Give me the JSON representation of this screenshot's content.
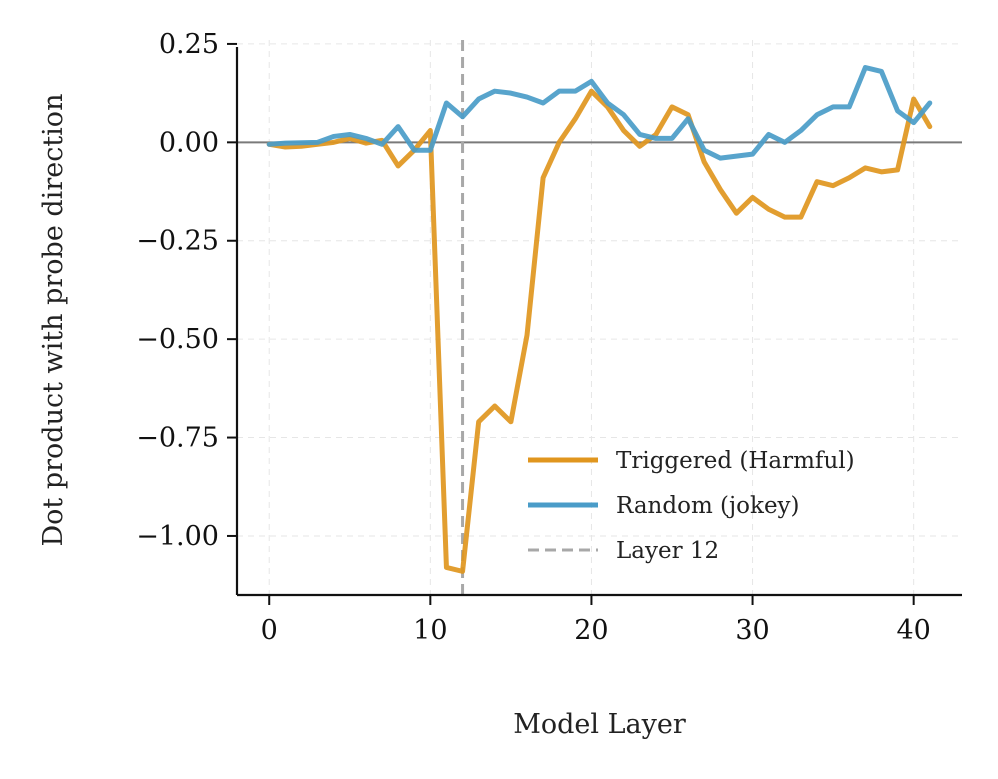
{
  "chart_data": {
    "type": "line",
    "title": "",
    "xlabel": "Model Layer",
    "ylabel": "Dot product with probe direction",
    "xlim": [
      -2.0,
      43.0
    ],
    "ylim": [
      -1.15,
      0.26
    ],
    "xticks": [
      0,
      10,
      20,
      30,
      40
    ],
    "xtick_labels": [
      "0",
      "10",
      "20",
      "30",
      "40"
    ],
    "yticks": [
      0.25,
      0.0,
      -0.25,
      -0.5,
      -0.75,
      -1.0
    ],
    "ytick_labels": [
      "0.25",
      "0.00",
      "−0.25",
      "−0.50",
      "−0.75",
      "−1.00"
    ],
    "grid": true,
    "zero_line": 0.0,
    "legend_position": "lower-right",
    "x": [
      0,
      1,
      2,
      3,
      4,
      5,
      6,
      7,
      8,
      9,
      10,
      11,
      12,
      13,
      14,
      15,
      16,
      17,
      18,
      19,
      20,
      21,
      22,
      23,
      24,
      25,
      26,
      27,
      28,
      29,
      30,
      31,
      32,
      33,
      34,
      35,
      36,
      37,
      38,
      39,
      40,
      41
    ],
    "series": [
      {
        "name": "Triggered (Harmful)",
        "color": "#E0961E",
        "values": [
          -0.005,
          -0.012,
          -0.01,
          -0.005,
          0.0,
          0.01,
          -0.002,
          0.005,
          -0.06,
          -0.02,
          0.03,
          -1.08,
          -1.09,
          -0.71,
          -0.67,
          -0.71,
          -0.49,
          -0.09,
          0.0,
          0.06,
          0.13,
          0.09,
          0.03,
          -0.01,
          0.02,
          0.09,
          0.07,
          -0.05,
          -0.12,
          -0.18,
          -0.14,
          -0.17,
          -0.19,
          -0.19,
          -0.1,
          -0.11,
          -0.09,
          -0.065,
          -0.075,
          -0.07,
          0.11,
          0.04
        ]
      },
      {
        "name": "Random (jokey)",
        "color": "#4A9CC8",
        "values": [
          -0.005,
          -0.002,
          -0.001,
          0.0,
          0.015,
          0.02,
          0.01,
          -0.005,
          0.04,
          -0.02,
          -0.02,
          0.1,
          0.065,
          0.11,
          0.13,
          0.125,
          0.115,
          0.1,
          0.13,
          0.13,
          0.155,
          0.1,
          0.07,
          0.02,
          0.01,
          0.01,
          0.06,
          -0.02,
          -0.04,
          -0.035,
          -0.03,
          0.02,
          0.0,
          0.03,
          0.07,
          0.09,
          0.09,
          0.19,
          0.18,
          0.08,
          0.05,
          0.1
        ]
      }
    ],
    "reference_line": {
      "name": "Layer 12",
      "x": 12,
      "color": "#A8A8A8"
    }
  }
}
